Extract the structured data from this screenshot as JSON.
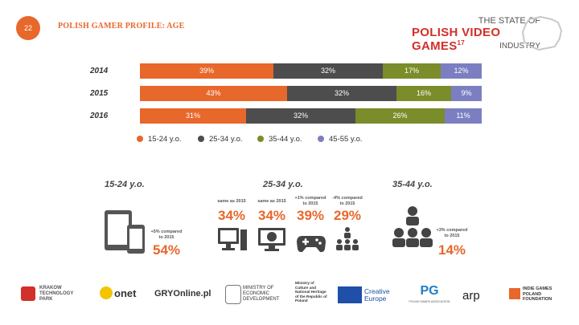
{
  "page": {
    "number": "22",
    "title": "POLISH GAMER PROFILE: AGE"
  },
  "brand": {
    "line1": "THE STATE OF",
    "line2": "POLISH VIDEO GAMES",
    "sup": "17",
    "line3": "INDUSTRY"
  },
  "chart_data": {
    "type": "bar",
    "orientation": "horizontal-stacked-100",
    "categories": [
      "2014",
      "2015",
      "2016"
    ],
    "series": [
      {
        "name": "15-24 y.o.",
        "values": [
          39,
          43,
          31
        ],
        "labels": [
          "39%",
          "43%",
          "31%"
        ],
        "color": "#e8672b"
      },
      {
        "name": "25-34 y.o.",
        "values": [
          32,
          32,
          32
        ],
        "labels": [
          "32%",
          "32%",
          "32%"
        ],
        "color": "#4d4d4d"
      },
      {
        "name": "35-44 y.o.",
        "values": [
          17,
          16,
          26
        ],
        "labels": [
          "17%",
          "16%",
          "26%"
        ],
        "color": "#7b8c2a"
      },
      {
        "name": "45-55 y.o.",
        "values": [
          12,
          9,
          11
        ],
        "labels": [
          "12%",
          "9%",
          "11%"
        ],
        "color": "#7b7fc1"
      }
    ],
    "xlim": [
      0,
      100
    ],
    "grid": false,
    "legend": "bottom"
  },
  "groups": {
    "g1": {
      "title": "15-24 y.o.",
      "note": "+5% compared to 2015",
      "pct": "54%",
      "icon": "mobile-devices-icon"
    },
    "g2": {
      "title": "25-34 y.o.",
      "items": [
        {
          "note": "same as 2015",
          "pct": "34%",
          "icon": "desktop-pc-icon"
        },
        {
          "note": "same as 2015",
          "pct": "34%",
          "icon": "globe-monitor-icon"
        },
        {
          "note": "+1% compared to 2015",
          "pct": "39%",
          "icon": "gamepad-icon"
        },
        {
          "note": "-4% compared to 2015",
          "pct": "29%",
          "icon": "people-hierarchy-icon"
        }
      ]
    },
    "g3": {
      "title": "35-44 y.o.",
      "note": "+3% compared to 2015",
      "pct": "14%",
      "icon": "people-hierarchy-icon"
    }
  },
  "footer": {
    "krakow": "KRAKOW TECHNOLOGY PARK",
    "onet": "onet",
    "gry": "GRYOnline.pl",
    "ministry_econ": "MINISTRY OF ECONOMIC DEVELOPMENT",
    "ministry_culture": "Ministry of Culture and National Heritage of the Republic of Poland",
    "creative": "Creative Europe",
    "pg": "PG",
    "pg_sub": "POLISH GAMES ASSOCIATION",
    "arp": "arp",
    "indie": "INDIE GAMES POLAND FOUNDATION"
  }
}
